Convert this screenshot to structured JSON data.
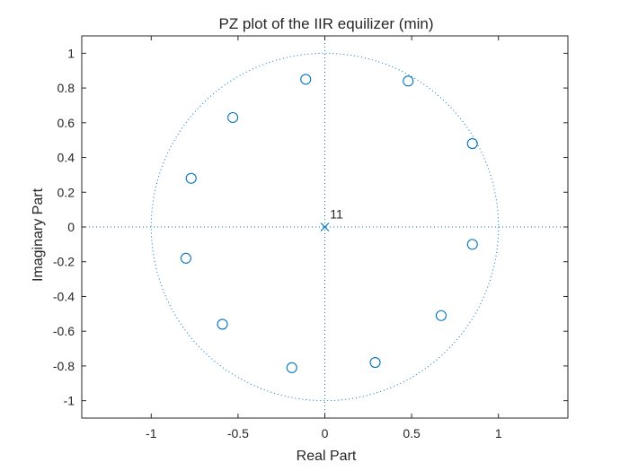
{
  "chart_data": {
    "type": "scatter",
    "title": "PZ plot of the IIR equilizer (min)",
    "xlabel": "Real Part",
    "ylabel": "Imaginary Part",
    "xlim": [
      -1.4,
      1.4
    ],
    "ylim": [
      -1.1,
      1.1
    ],
    "xticks": [
      -1,
      -0.5,
      0,
      0.5,
      1
    ],
    "xtick_labels": [
      "-1",
      "-0.5",
      "0",
      "0.5",
      "1"
    ],
    "yticks": [
      1,
      0.8,
      0.6,
      0.4,
      0.2,
      0,
      -0.2,
      -0.4,
      -0.6,
      -0.8,
      -1
    ],
    "ytick_labels": [
      "1",
      "0.8",
      "0.6",
      "0.4",
      "0.2",
      "0",
      "-0.2",
      "-0.4",
      "-0.6",
      "-0.8",
      "-1"
    ],
    "grid": false,
    "unit_circle": true,
    "series": [
      {
        "marker": "o",
        "color": "#0072BD",
        "points": [
          {
            "x": -0.11,
            "y": 0.85
          },
          {
            "x": 0.48,
            "y": 0.84
          },
          {
            "x": -0.53,
            "y": 0.63
          },
          {
            "x": 0.85,
            "y": 0.48
          },
          {
            "x": -0.77,
            "y": 0.28
          },
          {
            "x": 0.85,
            "y": -0.1
          },
          {
            "x": -0.8,
            "y": -0.18
          },
          {
            "x": 0.67,
            "y": -0.51
          },
          {
            "x": -0.59,
            "y": -0.56
          },
          {
            "x": 0.29,
            "y": -0.78
          },
          {
            "x": -0.19,
            "y": -0.81
          }
        ]
      },
      {
        "marker": "x",
        "color": "#0072BD",
        "points": [
          {
            "x": 0,
            "y": 0
          }
        ]
      }
    ],
    "annotations": [
      {
        "text": "11",
        "x": 0.03,
        "y": 0.05
      }
    ]
  }
}
